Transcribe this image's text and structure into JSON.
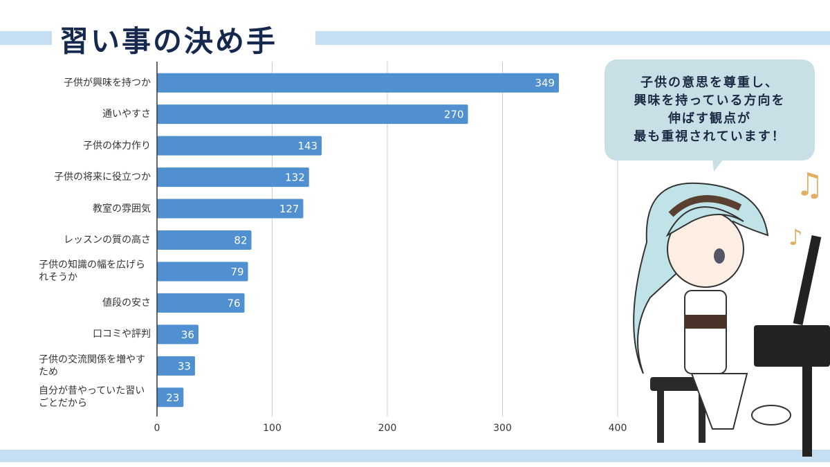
{
  "chart_data": {
    "type": "hbar",
    "title": "習い事の決め手",
    "categories": [
      "子供が興味を持つか",
      "通いやすさ",
      "子供の体力作り",
      "子供の将来に役立つか",
      "教室の雰囲気",
      "レッスンの質の高さ",
      "子供の知識の幅を広げられそうか",
      "値段の安さ",
      "口コミや評判",
      "子供の交流関係を増やすため",
      "自分が昔やっていた習いごとだから"
    ],
    "values": [
      349,
      270,
      143,
      132,
      127,
      82,
      79,
      76,
      36,
      33,
      23
    ],
    "color": "#5090d0",
    "xlim": [
      0,
      400
    ],
    "xticks": [
      0,
      100,
      200,
      300,
      400
    ],
    "grid": true
  },
  "speech_bubble": {
    "lines": [
      "子供の意思を尊重し、",
      "興味を持っている方向を",
      "伸ばす観点が",
      "最も重視されています！"
    ]
  }
}
